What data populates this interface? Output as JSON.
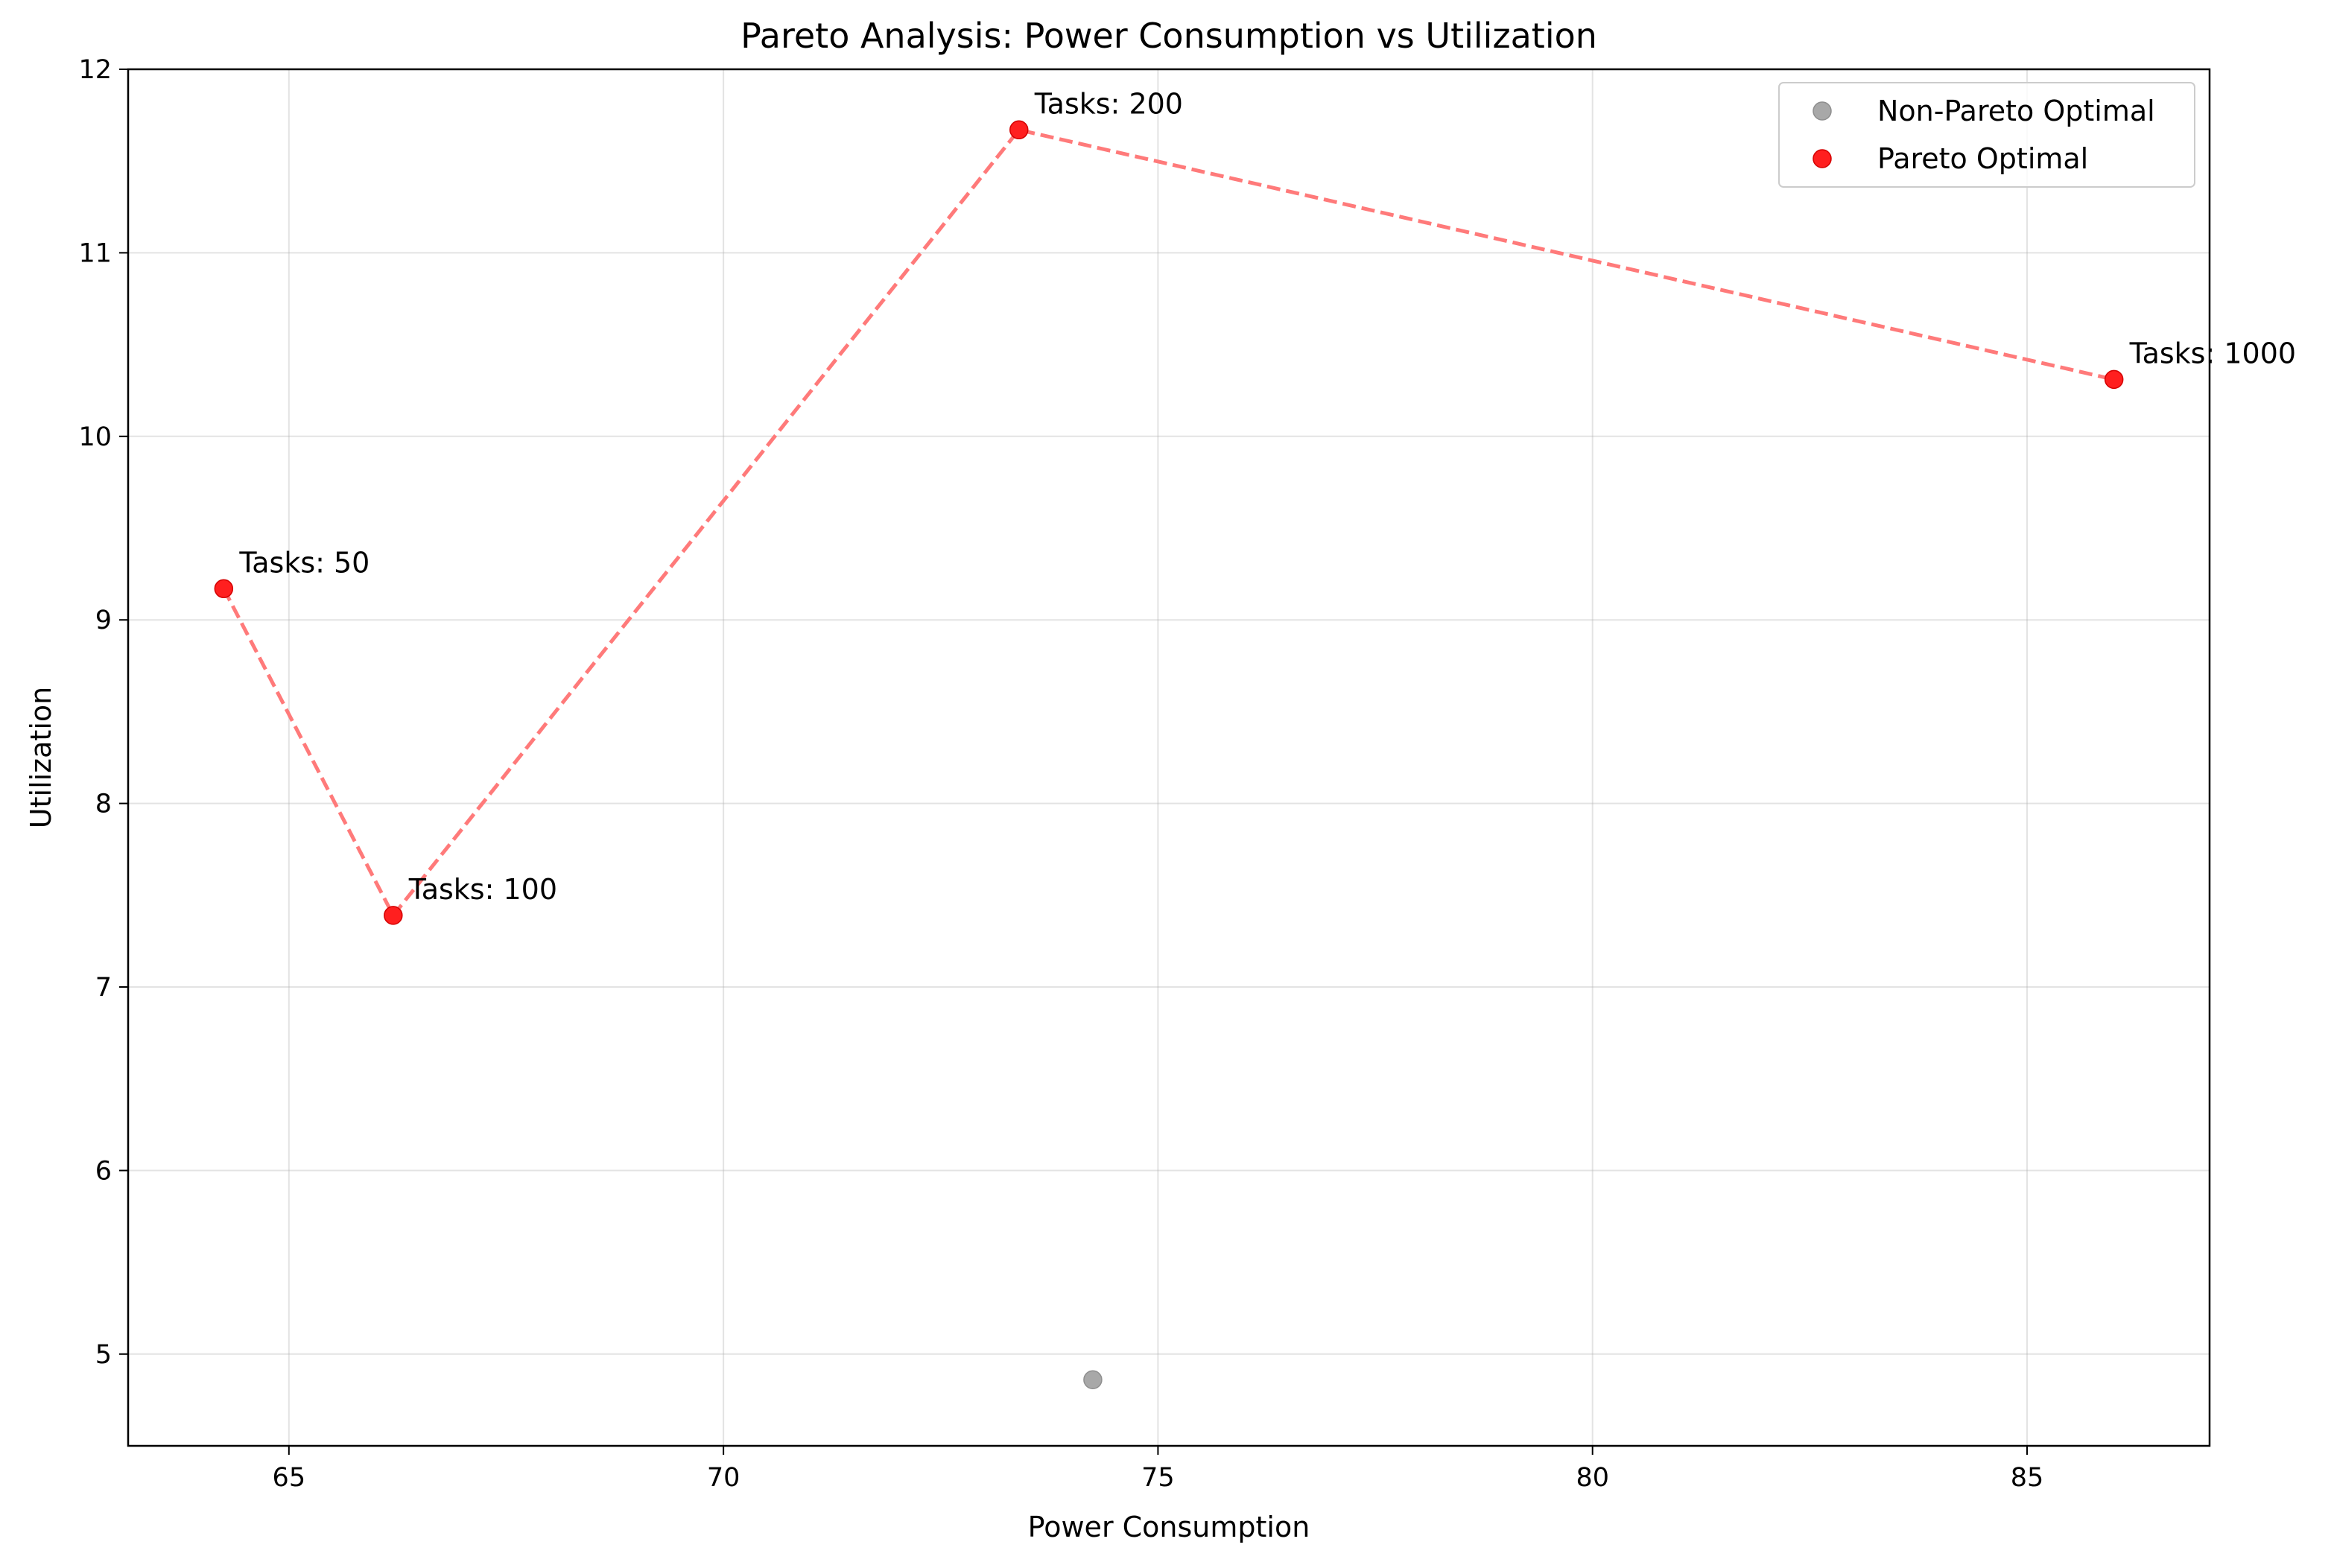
{
  "chart_data": {
    "type": "scatter",
    "title": "Pareto Analysis: Power Consumption vs Utilization",
    "xlabel": "Power Consumption",
    "ylabel": "Utilization",
    "xlim": [
      63.15,
      87.1
    ],
    "ylim": [
      4.5,
      12.0
    ],
    "xticks": [
      65,
      70,
      75,
      80,
      85
    ],
    "yticks": [
      5,
      6,
      7,
      8,
      9,
      10,
      11,
      12
    ],
    "grid": true,
    "legend_position": "top-right",
    "series": [
      {
        "name": "Non-Pareto Optimal",
        "color": "#a8a8a8",
        "points": [
          {
            "x": 74.25,
            "y": 4.86
          }
        ]
      },
      {
        "name": "Pareto Optimal",
        "color": "#ff1f1f",
        "frontier_color": "#ff7a7a",
        "points": [
          {
            "x": 64.25,
            "y": 9.17,
            "label": "Tasks: 50"
          },
          {
            "x": 66.2,
            "y": 7.39,
            "label": "Tasks: 100"
          },
          {
            "x": 73.4,
            "y": 11.67,
            "label": "Tasks: 200"
          },
          {
            "x": 86.0,
            "y": 10.31,
            "label": "Tasks: 1000"
          }
        ]
      }
    ]
  }
}
